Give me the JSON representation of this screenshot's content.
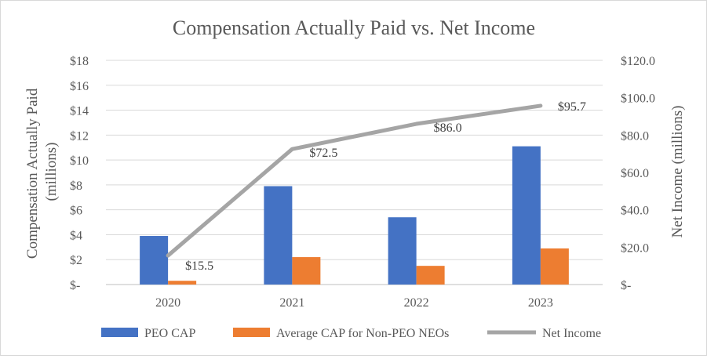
{
  "chart_data": {
    "type": "bar",
    "title": "Compensation Actually Paid vs. Net Income",
    "categories": [
      "2020",
      "2021",
      "2022",
      "2023"
    ],
    "y_left": {
      "label_line1": "Compensation Actually Paid",
      "label_line2": "(millions)",
      "ticks": [
        0,
        2,
        4,
        6,
        8,
        10,
        12,
        14,
        16,
        18
      ],
      "tick_labels": [
        "$-",
        "$2",
        "$4",
        "$6",
        "$8",
        "$10",
        "$12",
        "$14",
        "$16",
        "$18"
      ],
      "ylim": [
        0,
        18
      ]
    },
    "y_right": {
      "label": "Net Income (millions)",
      "ticks": [
        0,
        20,
        40,
        60,
        80,
        100,
        120
      ],
      "tick_labels": [
        "$-",
        "$20.0",
        "$40.0",
        "$60.0",
        "$80.0",
        "$100.0",
        "$120.0"
      ],
      "ylim": [
        0,
        120
      ]
    },
    "series": [
      {
        "name": "PEO CAP",
        "type": "bar",
        "axis": "left",
        "color": "#4472C4",
        "values": [
          3.9,
          7.9,
          5.4,
          11.1
        ]
      },
      {
        "name": "Average CAP for Non-PEO NEOs",
        "type": "bar",
        "axis": "left",
        "color": "#ED7D31",
        "values": [
          0.3,
          2.2,
          1.5,
          2.9
        ]
      },
      {
        "name": "Net Income",
        "type": "line",
        "axis": "right",
        "color": "#A5A5A5",
        "values": [
          15.5,
          72.5,
          86.0,
          95.7
        ],
        "data_labels": [
          "$15.5",
          "$72.5",
          "$86.0",
          "$95.7"
        ]
      }
    ],
    "grid": true,
    "legend_position": "bottom"
  }
}
